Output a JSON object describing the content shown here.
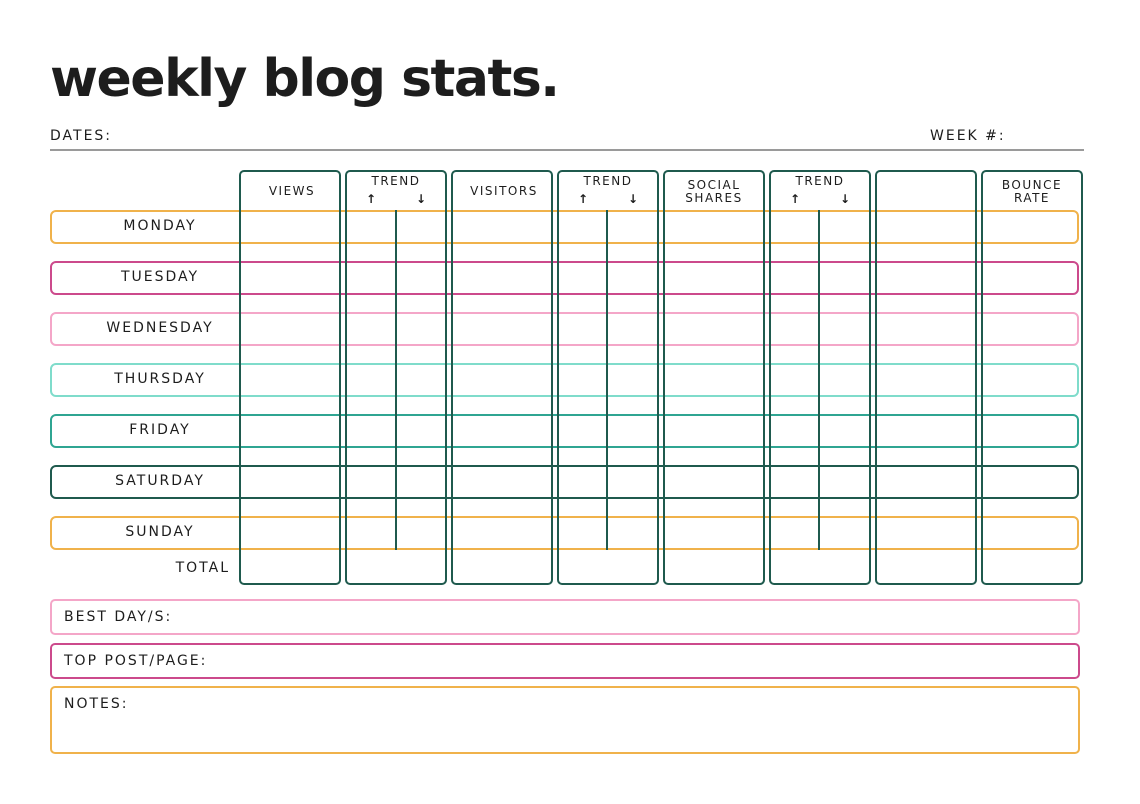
{
  "title": "weekly blog stats.",
  "header": {
    "dates_label": "DATES:",
    "week_label": "WEEK #:"
  },
  "columns": [
    {
      "label": "VIEWS"
    },
    {
      "label": "TREND",
      "up": "↑",
      "down": "↓"
    },
    {
      "label": "VISITORS"
    },
    {
      "label": "TREND",
      "up": "↑",
      "down": "↓"
    },
    {
      "label_line1": "SOCIAL",
      "label_line2": "SHARES"
    },
    {
      "label": "TREND",
      "up": "↑",
      "down": "↓"
    },
    {
      "label": ""
    },
    {
      "label_line1": "BOUNCE",
      "label_line2": "RATE"
    }
  ],
  "days": [
    {
      "label": "MONDAY",
      "color": "#f0b24b"
    },
    {
      "label": "TUESDAY",
      "color": "#cc4a8c"
    },
    {
      "label": "WEDNESDAY",
      "color": "#f4a6c8"
    },
    {
      "label": "THURSDAY",
      "color": "#7fdccb"
    },
    {
      "label": "FRIDAY",
      "color": "#2fa592"
    },
    {
      "label": "SATURDAY",
      "color": "#1f5a4e"
    },
    {
      "label": "SUNDAY",
      "color": "#f0b24b"
    }
  ],
  "total_label": "TOTAL",
  "footer": {
    "best_day": {
      "label": "BEST DAY/S:",
      "color": "#f4a6c8"
    },
    "top_post": {
      "label": "TOP POST/PAGE:",
      "color": "#cc4a8c"
    },
    "notes": {
      "label": "NOTES:",
      "color": "#f0b24b"
    }
  },
  "colors": {
    "column_border": "#1f5a4e",
    "rule": "#9a9a9a"
  }
}
